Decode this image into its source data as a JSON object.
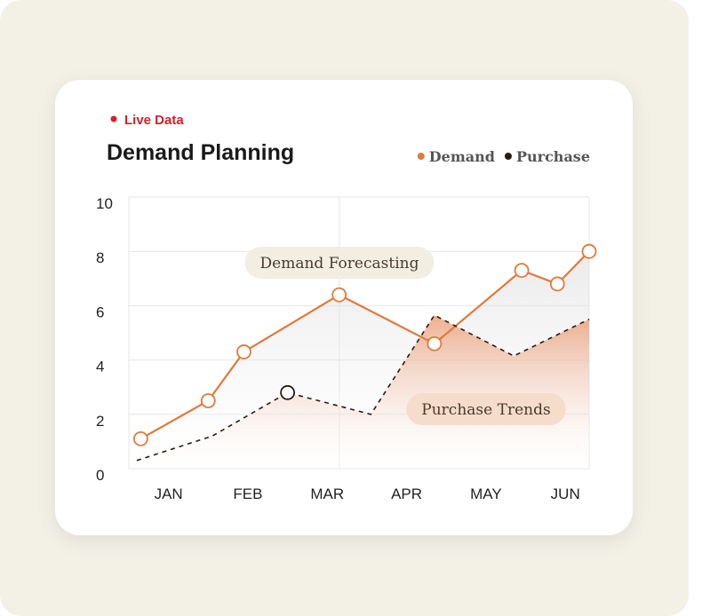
{
  "chart_data": {
    "type": "line",
    "badge": "Live Data",
    "title": "Demand Planning",
    "annotations": [
      "Demand Forecasting",
      "Purchase Trends"
    ],
    "xlim": [
      -0.5,
      5.3
    ],
    "xticks": [
      {
        "value": 0,
        "label": "JAN"
      },
      {
        "value": 1,
        "label": "FEB"
      },
      {
        "value": 2,
        "label": "MAR"
      },
      {
        "value": 3,
        "label": "APR"
      },
      {
        "value": 4,
        "label": "MAY"
      },
      {
        "value": 5,
        "label": "JUN"
      }
    ],
    "ylim": [
      0,
      10
    ],
    "yticks": [
      0,
      2,
      4,
      6,
      8,
      10
    ],
    "grid": true,
    "legend": "top-right",
    "series": [
      {
        "name": "Demand",
        "color": "#e07a3a",
        "dashed": false,
        "marker_index": "all",
        "x": [
          -0.35,
          0.5,
          0.95,
          2.15,
          3.35,
          4.45,
          4.9,
          5.3
        ],
        "values": [
          1.1,
          2.5,
          4.3,
          6.4,
          4.6,
          7.3,
          6.8,
          8.0
        ]
      },
      {
        "name": "Purchase",
        "color": "#2b1a10",
        "dashed": true,
        "marker_index": 2,
        "x": [
          -0.4,
          0.55,
          1.5,
          2.55,
          3.35,
          4.35,
          5.3
        ],
        "values": [
          0.3,
          1.2,
          2.8,
          2.0,
          5.65,
          4.15,
          5.5
        ]
      }
    ]
  }
}
